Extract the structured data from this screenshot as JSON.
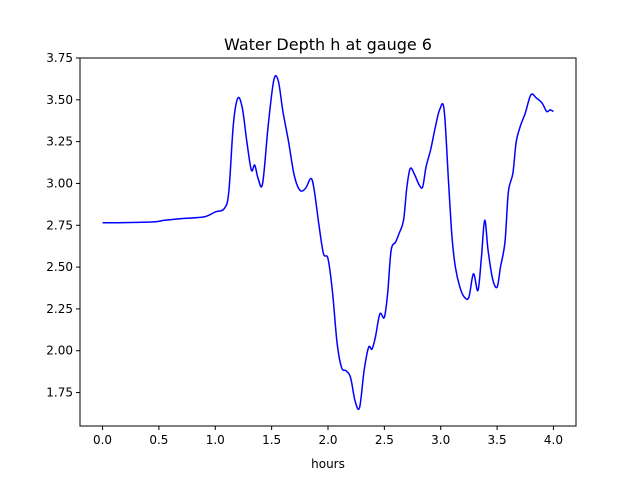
{
  "chart_data": {
    "type": "line",
    "title": "Water Depth h at gauge 6",
    "xlabel": "hours",
    "ylabel": "",
    "xlim": [
      -0.2,
      4.2
    ],
    "ylim": [
      1.55,
      3.75
    ],
    "xticks": [
      0.0,
      0.5,
      1.0,
      1.5,
      2.0,
      2.5,
      3.0,
      3.5,
      4.0
    ],
    "xtick_labels": [
      "0.0",
      "0.5",
      "1.0",
      "1.5",
      "2.0",
      "2.5",
      "3.0",
      "3.5",
      "4.0"
    ],
    "yticks": [
      1.75,
      2.0,
      2.25,
      2.5,
      2.75,
      3.0,
      3.25,
      3.5,
      3.75
    ],
    "ytick_labels": [
      "1.75",
      "2.00",
      "2.25",
      "2.50",
      "2.75",
      "3.00",
      "3.25",
      "3.50",
      "3.75"
    ],
    "grid": false,
    "series": [
      {
        "name": "",
        "color": "#0000ff",
        "x": [
          0.0,
          0.2,
          0.45,
          0.55,
          0.7,
          0.9,
          1.0,
          1.08,
          1.12,
          1.16,
          1.2,
          1.24,
          1.28,
          1.32,
          1.35,
          1.38,
          1.42,
          1.47,
          1.52,
          1.56,
          1.6,
          1.65,
          1.7,
          1.75,
          1.8,
          1.85,
          1.88,
          1.92,
          1.96,
          2.0,
          2.04,
          2.08,
          2.12,
          2.16,
          2.2,
          2.24,
          2.28,
          2.32,
          2.36,
          2.39,
          2.42,
          2.46,
          2.5,
          2.53,
          2.56,
          2.6,
          2.63,
          2.67,
          2.7,
          2.73,
          2.77,
          2.81,
          2.84,
          2.87,
          2.91,
          2.95,
          2.99,
          3.03,
          3.07,
          3.1,
          3.13,
          3.17,
          3.21,
          3.25,
          3.29,
          3.33,
          3.36,
          3.39,
          3.42,
          3.46,
          3.5,
          3.53,
          3.57,
          3.6,
          3.64,
          3.67,
          3.71,
          3.75,
          3.8,
          3.85,
          3.9,
          3.94,
          3.97,
          4.0
        ],
        "y": [
          2.765,
          2.766,
          2.77,
          2.78,
          2.79,
          2.8,
          2.83,
          2.85,
          2.95,
          3.35,
          3.51,
          3.45,
          3.25,
          3.08,
          3.11,
          3.03,
          3.0,
          3.35,
          3.62,
          3.61,
          3.43,
          3.25,
          3.05,
          2.96,
          2.97,
          3.03,
          2.95,
          2.75,
          2.58,
          2.55,
          2.35,
          2.05,
          1.9,
          1.88,
          1.84,
          1.7,
          1.66,
          1.88,
          2.02,
          2.01,
          2.08,
          2.22,
          2.2,
          2.35,
          2.6,
          2.65,
          2.7,
          2.78,
          2.98,
          3.09,
          3.05,
          2.99,
          2.98,
          3.1,
          3.2,
          3.33,
          3.44,
          3.44,
          3.0,
          2.68,
          2.5,
          2.38,
          2.32,
          2.32,
          2.46,
          2.36,
          2.55,
          2.78,
          2.6,
          2.43,
          2.38,
          2.5,
          2.65,
          2.95,
          3.06,
          3.25,
          3.35,
          3.42,
          3.53,
          3.51,
          3.48,
          3.43,
          3.44,
          3.43
        ]
      }
    ]
  }
}
